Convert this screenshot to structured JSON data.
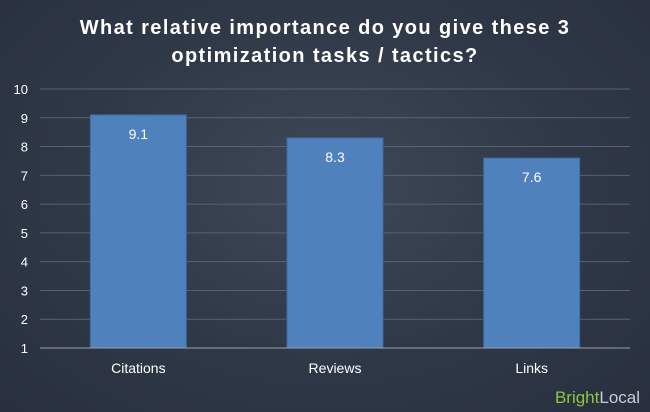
{
  "chart_data": {
    "type": "bar",
    "title_lines": [
      "What relative importance do you give these 3",
      "optimization tasks / tactics?"
    ],
    "categories": [
      "Citations",
      "Reviews",
      "Links"
    ],
    "values": [
      9.1,
      8.3,
      7.6
    ],
    "data_labels": [
      "9.1",
      "8.3",
      "7.6"
    ],
    "ylim": [
      1,
      10
    ],
    "yticks": [
      1,
      2,
      3,
      4,
      5,
      6,
      7,
      8,
      9,
      10
    ],
    "grid": true,
    "bar_color": "#4f81bd",
    "bar_border_color": "#3a6aa3",
    "grid_color": "#5a6270"
  },
  "brand": {
    "part1": "Bright",
    "part2": "Local"
  }
}
